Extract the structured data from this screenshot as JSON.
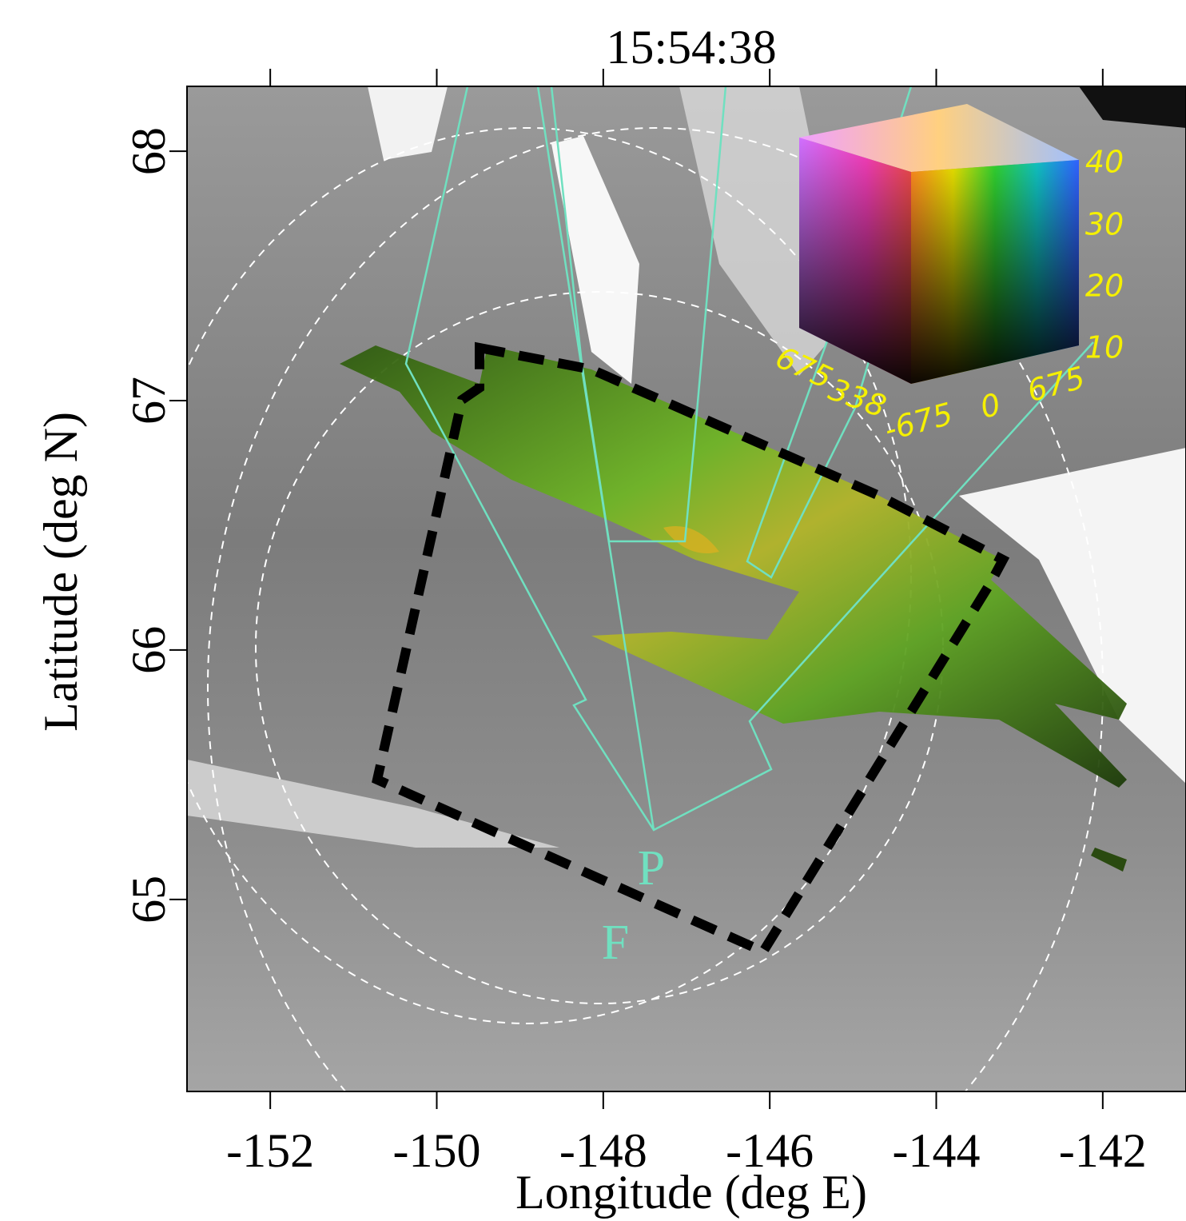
{
  "chart_data": {
    "type": "image",
    "title": "15:54:38",
    "x_label": "Longitude (deg E)",
    "y_label": "Latitude (deg N)",
    "xlim": [
      -153,
      -141
    ],
    "ylim": [
      64.23,
      68.26
    ],
    "xticks": [
      -152,
      -150,
      -148,
      -146,
      -144,
      -142
    ],
    "yticks": [
      65,
      66,
      67,
      68
    ],
    "annotations": [
      "P",
      "F"
    ],
    "color_cube": {
      "vertical_ticks": [
        40,
        30,
        20,
        10
      ],
      "horizontal_ticks": [
        675,
        338,
        -675,
        0,
        675
      ]
    }
  }
}
